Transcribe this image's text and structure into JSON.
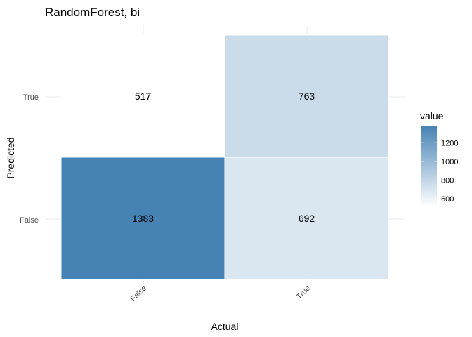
{
  "chart_data": {
    "type": "heatmap",
    "title": "RandomForest, bi",
    "xlabel": "Actual",
    "ylabel": "Predicted",
    "x_categories": [
      "False",
      "True"
    ],
    "y_categories": [
      "False",
      "True"
    ],
    "cells": [
      {
        "actual": "False",
        "predicted": "False",
        "value": 1383
      },
      {
        "actual": "True",
        "predicted": "False",
        "value": 692
      },
      {
        "actual": "False",
        "predicted": "True",
        "value": 517
      },
      {
        "actual": "True",
        "predicted": "True",
        "value": 763
      }
    ],
    "legend": {
      "title": "value",
      "ticks": [
        600,
        800,
        1000,
        1200
      ],
      "range": [
        517,
        1383
      ],
      "low_color": "#ffffff",
      "high_color": "#4682b4",
      "placement": "right"
    },
    "grid": true,
    "x_tick_rotation": "45deg"
  }
}
